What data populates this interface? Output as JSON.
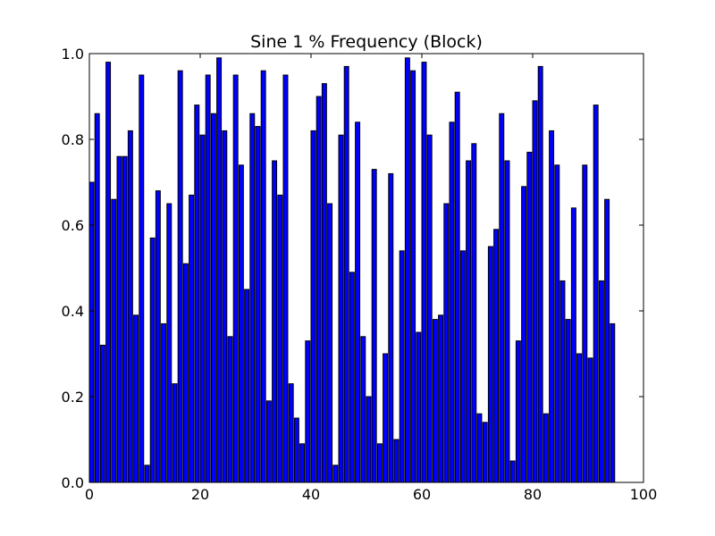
{
  "chart_data": {
    "type": "bar",
    "title": "Sine 1 % Frequency (Block)",
    "xlabel": "",
    "ylabel": "",
    "xlim": [
      0,
      100
    ],
    "ylim": [
      0,
      1.0
    ],
    "grid": false,
    "bar_color": "#0000ff",
    "bar_edge_color": "#000000",
    "x_ticks": [
      {
        "value": 0,
        "label": "0"
      },
      {
        "value": 20,
        "label": "20"
      },
      {
        "value": 40,
        "label": "40"
      },
      {
        "value": 60,
        "label": "60"
      },
      {
        "value": 80,
        "label": "80"
      },
      {
        "value": 100,
        "label": "100"
      }
    ],
    "y_ticks": [
      {
        "value": 0.0,
        "label": "0.0"
      },
      {
        "value": 0.2,
        "label": "0.2"
      },
      {
        "value": 0.4,
        "label": "0.4"
      },
      {
        "value": 0.6,
        "label": "0.6"
      },
      {
        "value": 0.8,
        "label": "0.8"
      },
      {
        "value": 1.0,
        "label": "1.0"
      }
    ],
    "series": [
      {
        "x": [
          0,
          1,
          2,
          3,
          4,
          5,
          6,
          7,
          8,
          9,
          10,
          11,
          12,
          13,
          14,
          15,
          16,
          17,
          18,
          19,
          20,
          21,
          22,
          23,
          24,
          25,
          26,
          27,
          28,
          29,
          30,
          31,
          32,
          33,
          34,
          35,
          36,
          37,
          38,
          39,
          40,
          41,
          42,
          43,
          44,
          45,
          46,
          47,
          48,
          49,
          50,
          51,
          52,
          53,
          54,
          55,
          56,
          57,
          58,
          59,
          60,
          61,
          62,
          63,
          64,
          65,
          66,
          67,
          68,
          69,
          70,
          71,
          72,
          73,
          74,
          75,
          76,
          77,
          78,
          79,
          80,
          81,
          82,
          83,
          84,
          85,
          86,
          87,
          88,
          89,
          90,
          91,
          92,
          93,
          94
        ],
        "values": [
          0.7,
          0.86,
          0.32,
          0.98,
          0.66,
          0.76,
          0.76,
          0.82,
          0.39,
          0.95,
          0.04,
          0.57,
          0.68,
          0.37,
          0.65,
          0.23,
          0.96,
          0.51,
          0.67,
          0.88,
          0.81,
          0.95,
          0.86,
          0.99,
          0.82,
          0.34,
          0.95,
          0.74,
          0.45,
          0.86,
          0.83,
          0.96,
          0.19,
          0.75,
          0.67,
          0.95,
          0.23,
          0.15,
          0.09,
          0.33,
          0.82,
          0.9,
          0.93,
          0.65,
          0.04,
          0.81,
          0.97,
          0.49,
          0.84,
          0.34,
          0.2,
          0.73,
          0.09,
          0.3,
          0.72,
          0.1,
          0.54,
          0.99,
          0.96,
          0.35,
          0.98,
          0.81,
          0.38,
          0.39,
          0.65,
          0.84,
          0.91,
          0.54,
          0.75,
          0.79,
          0.16,
          0.14,
          0.55,
          0.59,
          0.86,
          0.75,
          0.05,
          0.33,
          0.69,
          0.77,
          0.89,
          0.97,
          0.16,
          0.82,
          0.74,
          0.47,
          0.38,
          0.64,
          0.3,
          0.74,
          0.29,
          0.88,
          0.47,
          0.66,
          0.37
        ]
      }
    ]
  }
}
